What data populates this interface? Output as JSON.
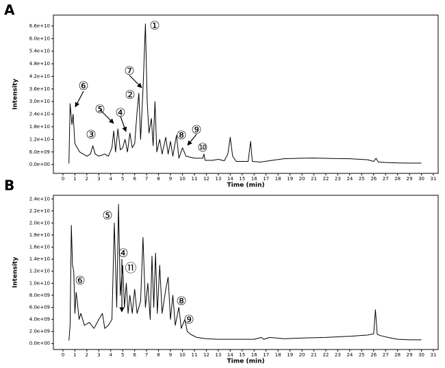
{
  "chart_data": [
    {
      "type": "line",
      "panel_label": "A",
      "ylabel": "Intensity",
      "xlabel": "Time (min)",
      "color": "#000000",
      "annotations": [
        "①",
        "②",
        "③",
        "④",
        "⑤",
        "⑥",
        "⑦",
        "⑧",
        "⑨",
        "⑩"
      ],
      "x": [
        0.5,
        0.6,
        0.75,
        0.85,
        1.0,
        1.2,
        1.4,
        1.7,
        2.0,
        2.3,
        2.5,
        2.7,
        3.0,
        3.5,
        3.8,
        4.1,
        4.25,
        4.4,
        4.6,
        4.8,
        5.0,
        5.2,
        5.4,
        5.6,
        5.8,
        6.0,
        6.2,
        6.35,
        6.5,
        6.7,
        6.9,
        7.05,
        7.2,
        7.4,
        7.55,
        7.7,
        7.85,
        8.1,
        8.3,
        8.6,
        8.8,
        9.0,
        9.2,
        9.5,
        9.7,
        10.0,
        10.3,
        11.0,
        11.7,
        11.8,
        11.9,
        12.5,
        13.0,
        13.5,
        13.8,
        14.0,
        14.2,
        14.5,
        15.0,
        15.5,
        15.7,
        15.85,
        16.5,
        17.5,
        18.5,
        20,
        21,
        22.5,
        24,
        25.5,
        26.0,
        26.2,
        26.4,
        27.0,
        28,
        29,
        30
      ],
      "values": [
        500000000.0,
        29000000000.0,
        19000000000.0,
        24000000000.0,
        10000000000.0,
        8000000000.0,
        6000000000.0,
        5000000000.0,
        4000000000.0,
        5000000000.0,
        9000000000.0,
        5000000000.0,
        4000000000.0,
        5000000000.0,
        4000000000.0,
        8000000000.0,
        16000000000.0,
        6000000000.0,
        17000000000.0,
        7000000000.0,
        8000000000.0,
        12000000000.0,
        6000000000.0,
        15000000000.0,
        8000000000.0,
        10000000000.0,
        25000000000.0,
        34000000000.0,
        12000000000.0,
        36000000000.0,
        67000000000.0,
        30000000000.0,
        15000000000.0,
        22000000000.0,
        9000000000.0,
        30000000000.0,
        6000000000.0,
        12000000000.0,
        5000000000.0,
        13000000000.0,
        5000000000.0,
        11000000000.0,
        4000000000.0,
        14000000000.0,
        3000000000.0,
        8000000000.0,
        4000000000.0,
        3000000000.0,
        3000000000.0,
        5000000000.0,
        2000000000.0,
        2000000000.0,
        2500000000.0,
        1800000000.0,
        5000000000.0,
        13000000000.0,
        4000000000.0,
        1500000000.0,
        1500000000.0,
        1500000000.0,
        11000000000.0,
        1500000000.0,
        1200000000.0,
        2000000000.0,
        2800000000.0,
        3000000000.0,
        3100000000.0,
        2900000000.0,
        2800000000.0,
        2300000000.0,
        1500000000.0,
        3000000000.0,
        1200000000.0,
        1000000000.0,
        800000000.0,
        700000000.0,
        700000000.0
      ],
      "xlim": [
        -0.8,
        31.4
      ],
      "ylim": [
        -4200000000.0,
        71200000000.0
      ],
      "xticks": [
        0,
        1,
        2,
        3,
        4,
        5,
        6,
        7,
        8,
        9,
        10,
        11,
        12,
        13,
        14,
        15,
        16,
        17,
        18,
        19,
        20,
        21,
        22,
        23,
        24,
        25,
        26,
        27,
        28,
        29,
        30,
        31
      ],
      "yticks": [
        {
          "value": 0,
          "label": "0.0e+00"
        },
        {
          "value": 6000000000.0,
          "label": "6.0e+09"
        },
        {
          "value": 12000000000.0,
          "label": "1.2e+10"
        },
        {
          "value": 18000000000.0,
          "label": "1.8e+10"
        },
        {
          "value": 24000000000.0,
          "label": "2.4e+10"
        },
        {
          "value": 30000000000.0,
          "label": "3.0e+10"
        },
        {
          "value": 36000000000.0,
          "label": "3.6e+10"
        },
        {
          "value": 42000000000.0,
          "label": "4.2e+10"
        },
        {
          "value": 48000000000.0,
          "label": "4.8e+10"
        },
        {
          "value": 54000000000.0,
          "label": "5.4e+10"
        },
        {
          "value": 60000000000.0,
          "label": "6.0e+10"
        },
        {
          "value": 66000000000.0,
          "label": "6.6e+10"
        }
      ]
    },
    {
      "type": "line",
      "panel_label": "B",
      "ylabel": "Intensity",
      "xlabel": "Time (min)",
      "color": "#000000",
      "annotations": [
        "⑤",
        "④",
        "⑪",
        "⑥",
        "⑧",
        "⑨"
      ],
      "x": [
        0.5,
        0.6,
        0.7,
        0.8,
        0.9,
        1.0,
        1.1,
        1.2,
        1.35,
        1.5,
        1.8,
        2.2,
        2.6,
        3.0,
        3.3,
        3.5,
        3.8,
        4.1,
        4.3,
        4.5,
        4.65,
        4.8,
        5.0,
        5.15,
        5.3,
        5.45,
        5.6,
        5.8,
        6.0,
        6.2,
        6.5,
        6.7,
        6.9,
        7.1,
        7.3,
        7.45,
        7.6,
        7.75,
        7.9,
        8.1,
        8.3,
        8.6,
        8.8,
        9.0,
        9.2,
        9.4,
        9.7,
        9.9,
        10.2,
        10.4,
        10.7,
        11.2,
        12,
        13,
        14,
        15,
        16,
        16.6,
        16.8,
        17.3,
        18.5,
        20,
        22,
        24,
        25.5,
        26.0,
        26.15,
        26.3,
        26.6,
        27.2,
        28,
        29,
        30
      ],
      "values": [
        500000000.0,
        3000000000.0,
        19600000000.0,
        13000000000.0,
        12000000000.0,
        5000000000.0,
        8500000000.0,
        7000000000.0,
        4000000000.0,
        5000000000.0,
        3000000000.0,
        3500000000.0,
        2500000000.0,
        4000000000.0,
        5000000000.0,
        2500000000.0,
        3000000000.0,
        4000000000.0,
        20000000000.0,
        6000000000.0,
        23100000000.0,
        8000000000.0,
        13000000000.0,
        6000000000.0,
        10000000000.0,
        5000000000.0,
        8000000000.0,
        5000000000.0,
        9000000000.0,
        5000000000.0,
        7000000000.0,
        17600000000.0,
        6000000000.0,
        10000000000.0,
        4000000000.0,
        14500000000.0,
        6000000000.0,
        15000000000.0,
        5000000000.0,
        13000000000.0,
        5000000000.0,
        9000000000.0,
        11000000000.0,
        4000000000.0,
        8000000000.0,
        3000000000.0,
        6000000000.0,
        2500000000.0,
        4000000000.0,
        2000000000.0,
        1500000000.0,
        1000000000.0,
        800000000.0,
        700000000.0,
        700000000.0,
        700000000.0,
        700000000.0,
        1000000000.0,
        700000000.0,
        1000000000.0,
        800000000.0,
        900000000.0,
        1000000000.0,
        1200000000.0,
        1400000000.0,
        1600000000.0,
        5600000000.0,
        1500000000.0,
        1300000000.0,
        1000000000.0,
        700000000.0,
        600000000.0,
        600000000.0
      ],
      "xlim": [
        -0.8,
        31.4
      ],
      "ylim": [
        -1000000000.0,
        24600000000.0
      ],
      "xticks": [
        0,
        1,
        2,
        3,
        4,
        5,
        6,
        7,
        8,
        9,
        10,
        11,
        12,
        13,
        14,
        15,
        16,
        17,
        18,
        19,
        20,
        21,
        22,
        23,
        24,
        25,
        26,
        27,
        28,
        29,
        30,
        31
      ],
      "yticks": [
        {
          "value": 0,
          "label": "0.0e+00"
        },
        {
          "value": 2000000000.0,
          "label": "2.0e+09"
        },
        {
          "value": 4000000000.0,
          "label": "4.0e+09"
        },
        {
          "value": 6000000000.0,
          "label": "6.0e+09"
        },
        {
          "value": 8000000000.0,
          "label": "8.0e+09"
        },
        {
          "value": 10000000000.0,
          "label": "1.0e+10"
        },
        {
          "value": 12000000000.0,
          "label": "1.2e+10"
        },
        {
          "value": 14000000000.0,
          "label": "1.4e+10"
        },
        {
          "value": 16000000000.0,
          "label": "1.6e+10"
        },
        {
          "value": 18000000000.0,
          "label": "1.8e+10"
        },
        {
          "value": 20000000000.0,
          "label": "2.0e+10"
        },
        {
          "value": 22000000000.0,
          "label": "2.2e+10"
        },
        {
          "value": 24000000000.0,
          "label": "2.4e+10"
        }
      ]
    }
  ]
}
